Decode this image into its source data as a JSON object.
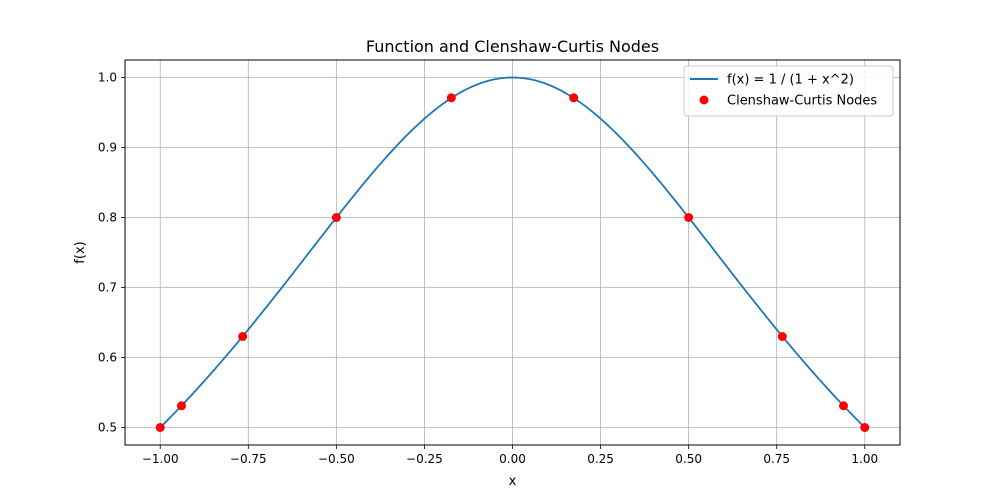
{
  "chart_data": {
    "type": "line",
    "title": "Function and Clenshaw-Curtis Nodes",
    "xlabel": "x",
    "ylabel": "f(x)",
    "xlim": [
      -1.1,
      1.1
    ],
    "ylim": [
      0.475,
      1.025
    ],
    "grid": true,
    "legend_position": "top-right",
    "x_ticks": [
      -1.0,
      -0.75,
      -0.5,
      -0.25,
      0.0,
      0.25,
      0.5,
      0.75,
      1.0
    ],
    "x_tick_labels": [
      "−1.00",
      "−0.75",
      "−0.50",
      "−0.25",
      "0.00",
      "0.25",
      "0.50",
      "0.75",
      "1.00"
    ],
    "y_ticks": [
      0.5,
      0.6,
      0.7,
      0.8,
      0.9,
      1.0
    ],
    "y_tick_labels": [
      "0.5",
      "0.6",
      "0.7",
      "0.8",
      "0.9",
      "1.0"
    ],
    "series": [
      {
        "name": "f(x) = 1 / (1 + x^2)",
        "kind": "line",
        "color": "#1f77b4",
        "function": "1/(1+x^2)",
        "x_range": [
          -1.0,
          1.0
        ]
      },
      {
        "name": "Clenshaw-Curtis Nodes",
        "kind": "scatter",
        "color": "#ff0000",
        "x": [
          -1.0,
          -0.9397,
          -0.766,
          -0.5,
          -0.1736,
          0.1736,
          0.5,
          0.766,
          0.9397,
          1.0
        ],
        "y": [
          0.5,
          0.531,
          0.63,
          0.8,
          0.971,
          0.971,
          0.8,
          0.63,
          0.531,
          0.5
        ]
      }
    ]
  }
}
